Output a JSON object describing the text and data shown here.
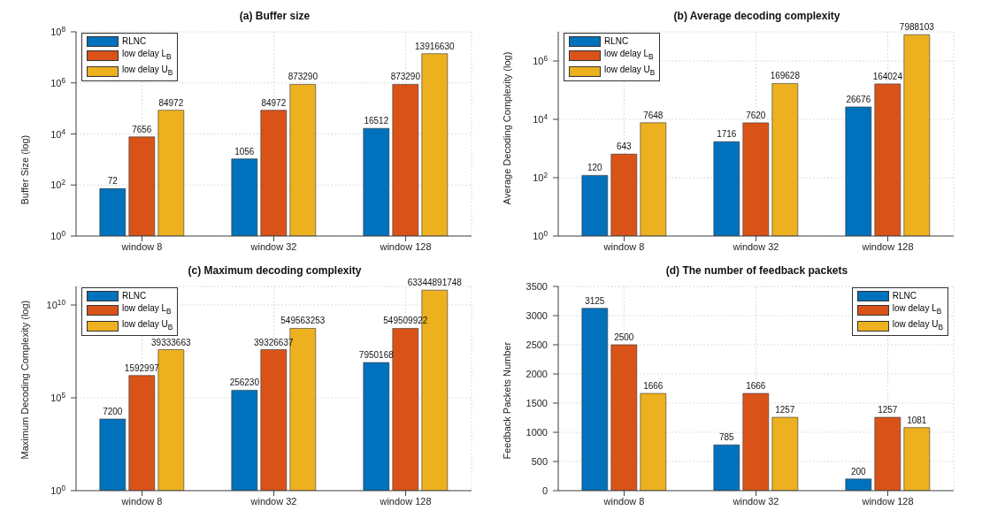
{
  "chart_data": [
    {
      "type": "bar",
      "title": "(a) Buffer size",
      "ylabel": "Buffer Size (log)",
      "categories": [
        "window 8",
        "window 32",
        "window 128"
      ],
      "log": "y",
      "ylim": [
        1,
        100000000
      ],
      "yticks": [
        {
          "value": 1,
          "label": "10$^{0}$"
        },
        {
          "value": 100,
          "label": "10$^{2}$"
        },
        {
          "value": 10000,
          "label": "10$^{4}$"
        },
        {
          "value": 1000000,
          "label": "10$^{6}$"
        },
        {
          "value": 100000000,
          "label": "10$^{8}$"
        }
      ],
      "grid": true,
      "legend": "top left",
      "data_labels": true,
      "series": [
        {
          "name": "RLNC",
          "color": "#0072bd",
          "values": [
            72,
            1056,
            16512
          ]
        },
        {
          "name": "low delay L$_{B}$",
          "color": "#d95319",
          "values": [
            7656,
            84972,
            873290
          ]
        },
        {
          "name": "low delay U$_{B}$",
          "color": "#edb120",
          "values": [
            84972,
            873290,
            13916630
          ]
        }
      ]
    },
    {
      "type": "bar",
      "title": "(b) Average decoding complexity",
      "ylabel": "Average Decoding Complexity (log)",
      "categories": [
        "window 8",
        "window 32",
        "window 128"
      ],
      "log": "y",
      "ylim": [
        1,
        10000000
      ],
      "yticks": [
        {
          "value": 1,
          "label": "10$^{0}$"
        },
        {
          "value": 100,
          "label": "10$^{2}$"
        },
        {
          "value": 10000,
          "label": "10$^{4}$"
        },
        {
          "value": 1000000,
          "label": "10$^{6}$"
        }
      ],
      "grid": true,
      "legend": "top left",
      "data_labels": true,
      "series": [
        {
          "name": "RLNC",
          "color": "#0072bd",
          "values": [
            120,
            1716,
            26676
          ]
        },
        {
          "name": "low delay L$_{B}$",
          "color": "#d95319",
          "values": [
            643,
            7620,
            164024
          ]
        },
        {
          "name": "low delay U$_{B}$",
          "color": "#edb120",
          "values": [
            7648,
            169628,
            7988103
          ]
        }
      ]
    },
    {
      "type": "bar",
      "title": "(c) Maximum decoding complexity",
      "ylabel": "Maximum Decoding Complexity (log)",
      "categories": [
        "window 8",
        "window 32",
        "window 128"
      ],
      "log": "y",
      "ylim": [
        1,
        100000000000
      ],
      "yticks": [
        {
          "value": 1,
          "label": "10$^{0}$"
        },
        {
          "value": 100000,
          "label": "10$^{5}$"
        },
        {
          "value": 10000000000,
          "label": "10$^{10}$"
        }
      ],
      "grid": true,
      "legend": "top left",
      "data_labels": true,
      "series": [
        {
          "name": "RLNC",
          "color": "#0072bd",
          "values": [
            7200,
            256230,
            7950168
          ]
        },
        {
          "name": "low delay L$_{B}$",
          "color": "#d95319",
          "values": [
            1592997,
            39326637,
            549509922
          ]
        },
        {
          "name": "low delay U$_{B}$",
          "color": "#edb120",
          "values": [
            39333663,
            549563253,
            63344891748
          ]
        }
      ]
    },
    {
      "type": "bar",
      "title": "(d) The number of feedback packets",
      "ylabel": "Feedback Packets Number",
      "categories": [
        "window 8",
        "window 32",
        "window 128"
      ],
      "ylim": [
        0,
        3500
      ],
      "yticks": [
        0,
        500,
        1000,
        1500,
        2000,
        2500,
        3000,
        3500
      ],
      "grid": true,
      "legend": "top right",
      "data_labels": true,
      "series": [
        {
          "name": "RLNC",
          "color": "#0072bd",
          "values": [
            3125,
            785,
            200
          ]
        },
        {
          "name": "low delay L$_{B}$",
          "color": "#d95319",
          "values": [
            2500,
            1666,
            1257
          ]
        },
        {
          "name": "low delay U$_{B}$",
          "color": "#edb120",
          "values": [
            1666,
            1257,
            1081
          ]
        }
      ]
    }
  ]
}
